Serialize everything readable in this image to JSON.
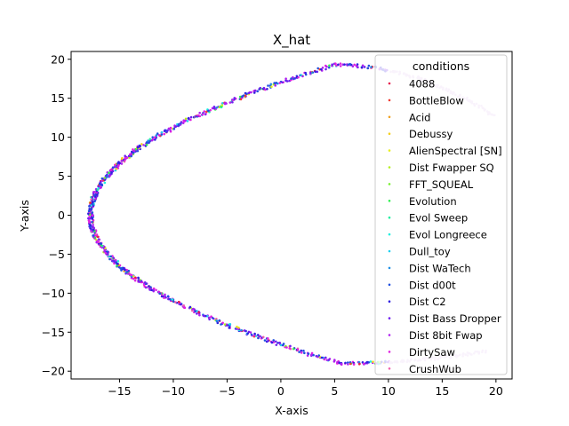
{
  "chart_data": {
    "type": "scatter",
    "title": "X_hat",
    "xlabel": "X-axis",
    "ylabel": "Y-axis",
    "xlim": [
      -19.5,
      21.5
    ],
    "ylim": [
      -21.0,
      21.0
    ],
    "xticks": [
      -15,
      -10,
      -5,
      0,
      5,
      10,
      15,
      20
    ],
    "yticks": [
      -20,
      -15,
      -10,
      -5,
      0,
      5,
      10,
      15,
      20
    ],
    "xtick_labels": [
      "−15",
      "−10",
      "−5",
      "0",
      "5",
      "10",
      "15",
      "20"
    ],
    "ytick_labels": [
      "−20",
      "−15",
      "−10",
      "−5",
      "0",
      "5",
      "10",
      "15",
      "20"
    ],
    "grid": false,
    "legend": {
      "title": "conditions",
      "placement": "upper-right",
      "entries": [
        {
          "name": "4088",
          "color": "#e6194b"
        },
        {
          "name": "BottleBlow",
          "color": "#f03c32"
        },
        {
          "name": "Acid",
          "color": "#f0a020"
        },
        {
          "name": "Debussy",
          "color": "#f5d020"
        },
        {
          "name": "AlienSpectral [SN]",
          "color": "#e8f020"
        },
        {
          "name": "Dist Fwapper SQ",
          "color": "#b4f020"
        },
        {
          "name": "FFT_SQUEAL",
          "color": "#78f030"
        },
        {
          "name": "Evolution",
          "color": "#30f050"
        },
        {
          "name": "Evol Sweep",
          "color": "#20f0a0"
        },
        {
          "name": "Evol Longreece",
          "color": "#20f0e0"
        },
        {
          "name": "Dull_toy",
          "color": "#20d0f0"
        },
        {
          "name": "Dist WaTech",
          "color": "#2090e6"
        },
        {
          "name": "Dist d00t",
          "color": "#2050e0"
        },
        {
          "name": "Dist C2",
          "color": "#3020e0"
        },
        {
          "name": "Dist Bass Dropper",
          "color": "#7020f0"
        },
        {
          "name": "Dist 8bit Fwap",
          "color": "#b020f0"
        },
        {
          "name": "DirtySaw",
          "color": "#e020e0"
        },
        {
          "name": "CrushWub",
          "color": "#f060b0"
        }
      ]
    },
    "series_shape": {
      "description": "points trace a sideways parabola-like curve",
      "vertex": [
        -17.7,
        0.0
      ],
      "top_end": [
        19.8,
        12.8
      ],
      "bottom_end": [
        18.9,
        -17.5
      ],
      "approx_top_peak": [
        5.0,
        19.3
      ],
      "approx_bottom_trough": [
        5.5,
        -19.0
      ]
    }
  }
}
